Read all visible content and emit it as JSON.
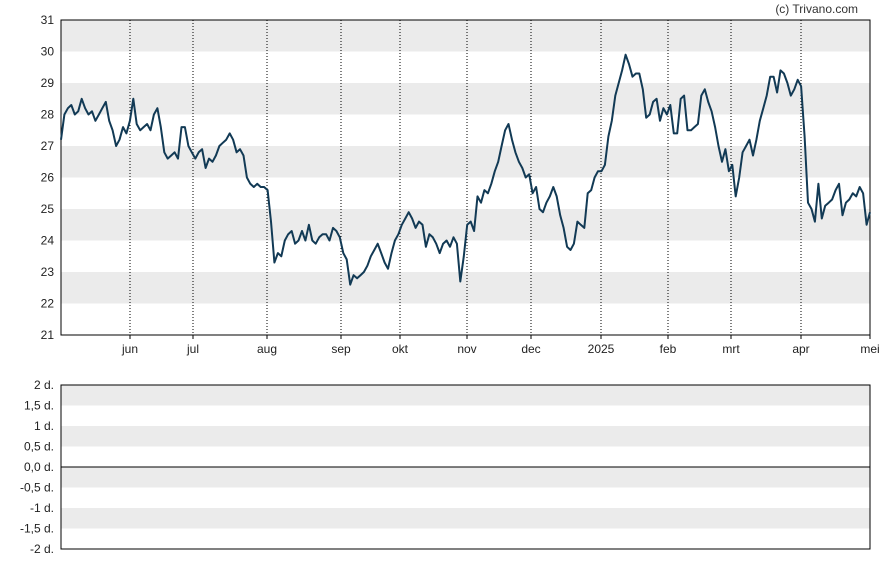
{
  "credit": "(c) Trivano.com",
  "colors": {
    "line": "#123a55",
    "band": "#ebebeb",
    "axis": "#000000",
    "grid": "#000000"
  },
  "chart_data": [
    {
      "type": "line",
      "ylim": [
        21,
        31
      ],
      "y_ticks": [
        21,
        22,
        23,
        24,
        25,
        26,
        27,
        28,
        29,
        30,
        31
      ],
      "x_ticks": [
        "jun",
        "jul",
        "aug",
        "sep",
        "okt",
        "nov",
        "dec",
        "2025",
        "feb",
        "mrt",
        "apr",
        "mei"
      ],
      "grid": "vertical dotted at month starts; alternating horizontal bands",
      "series": [
        {
          "values": [
            27.2,
            28.0,
            28.2,
            28.3,
            28.0,
            28.1,
            28.5,
            28.2,
            28.0,
            28.1,
            27.8,
            28.0,
            28.2,
            28.4,
            27.8,
            27.5,
            27.0,
            27.2,
            27.6,
            27.4,
            27.8,
            28.5,
            27.7,
            27.5,
            27.6,
            27.7,
            27.5,
            28.0,
            28.2,
            27.6,
            26.8,
            26.6,
            26.7,
            26.8,
            26.6,
            27.6,
            27.6,
            27.0,
            26.8,
            26.6,
            26.8,
            26.9,
            26.3,
            26.6,
            26.5,
            26.7,
            27.0,
            27.1,
            27.2,
            27.4,
            27.2,
            26.8,
            26.9,
            26.7,
            26.0,
            25.8,
            25.7,
            25.8,
            25.7,
            25.7,
            25.6,
            24.6,
            23.3,
            23.6,
            23.5,
            24.0,
            24.2,
            24.3,
            23.9,
            24.0,
            24.3,
            24.0,
            24.5,
            24.0,
            23.9,
            24.1,
            24.2,
            24.2,
            24.0,
            24.4,
            24.3,
            24.1,
            23.6,
            23.4,
            22.6,
            22.9,
            22.8,
            22.9,
            23.0,
            23.2,
            23.5,
            23.7,
            23.9,
            23.6,
            23.3,
            23.1,
            23.6,
            24.0,
            24.2,
            24.5,
            24.7,
            24.9,
            24.7,
            24.4,
            24.6,
            24.5,
            23.8,
            24.2,
            24.1,
            23.9,
            23.6,
            23.9,
            24.0,
            23.8,
            24.1,
            23.9,
            22.7,
            23.5,
            24.5,
            24.6,
            24.3,
            25.4,
            25.2,
            25.6,
            25.5,
            25.8,
            26.2,
            26.5,
            27.0,
            27.5,
            27.7,
            27.2,
            26.8,
            26.5,
            26.3,
            26.0,
            26.1,
            25.5,
            25.7,
            25.0,
            24.9,
            25.2,
            25.4,
            25.7,
            25.4,
            24.8,
            24.4,
            23.8,
            23.7,
            23.9,
            24.6,
            24.5,
            24.4,
            25.5,
            25.6,
            26.0,
            26.2,
            26.2,
            26.4,
            27.3,
            27.8,
            28.6,
            29.0,
            29.4,
            29.9,
            29.6,
            29.2,
            29.3,
            29.3,
            28.8,
            27.9,
            28.0,
            28.4,
            28.5,
            27.8,
            28.2,
            28.0,
            28.3,
            27.4,
            27.4,
            28.5,
            28.6,
            27.5,
            27.5,
            27.6,
            27.7,
            28.6,
            28.8,
            28.4,
            28.1,
            27.6,
            27.0,
            26.5,
            26.9,
            26.2,
            26.4,
            25.4,
            26.0,
            26.8,
            27.0,
            27.2,
            26.7,
            27.2,
            27.8,
            28.2,
            28.6,
            29.2,
            29.2,
            28.7,
            29.4,
            29.3,
            29.0,
            28.6,
            28.8,
            29.1,
            28.9,
            27.3,
            25.2,
            25.0,
            24.6,
            25.8,
            24.7,
            25.1,
            25.2,
            25.3,
            25.6,
            25.8,
            24.8,
            25.2,
            25.3,
            25.5,
            25.4,
            25.7,
            25.5,
            24.5,
            24.9
          ]
        }
      ]
    },
    {
      "type": "line",
      "ylim": [
        -2,
        2
      ],
      "y_ticks": [
        "2 d.",
        "1,5 d.",
        "1 d.",
        "0,5 d.",
        "0,0 d.",
        "-0,5 d.",
        "-1 d.",
        "-1,5 d.",
        "-2 d."
      ],
      "grid": "alternating horizontal bands; zero line",
      "series": []
    }
  ]
}
